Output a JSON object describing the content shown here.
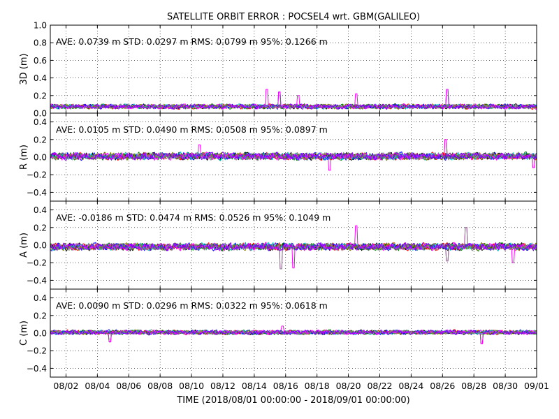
{
  "chart_data": {
    "type": "line",
    "title": "SATELLITE ORBIT ERROR : POCSEL4 wrt. GBM(GALILEO)",
    "xlabel": "TIME  (2018/08/01 00:00:00 - 2018/09/01 00:00:00)",
    "x_range": [
      "2018/08/01 00:00:00",
      "2018/09/01 00:00:00"
    ],
    "x_tick_labels": [
      "08/02",
      "08/04",
      "08/06",
      "08/08",
      "08/10",
      "08/12",
      "08/14",
      "08/16",
      "08/18",
      "08/20",
      "08/22",
      "08/24",
      "08/26",
      "08/28",
      "08/30",
      "09/01"
    ],
    "x_tick_days": [
      1,
      3,
      5,
      7,
      9,
      11,
      13,
      15,
      17,
      19,
      21,
      23,
      25,
      27,
      29,
      31
    ],
    "grid": true,
    "series_colors": [
      "#000000",
      "#ff0000",
      "#008000",
      "#0000ff",
      "#00bfbf",
      "#808000",
      "#ff00ff",
      "#808080",
      "#8000ff"
    ],
    "panels": [
      {
        "id": "3d",
        "ylabel": "3D (m)",
        "ylim": [
          0.0,
          1.0
        ],
        "yticks": [
          0.0,
          0.2,
          0.4,
          0.6,
          0.8,
          1.0
        ],
        "ytick_labels": [
          "0.0",
          "0.2",
          "0.4",
          "0.6",
          "0.8",
          "1.0"
        ],
        "stats": "AVE: 0.0739 m STD: 0.0297 m RMS: 0.0799 m 95%: 0.1266 m",
        "center": 0.075,
        "amplitude": 0.03,
        "clip_min": 0.0,
        "spikes": [
          [
            13.8,
            0.27
          ],
          [
            14.6,
            0.24
          ],
          [
            19.5,
            0.22
          ],
          [
            25.3,
            0.27
          ],
          [
            15.8,
            0.2
          ]
        ]
      },
      {
        "id": "r",
        "ylabel": "R (m)",
        "ylim": [
          -0.5,
          0.5
        ],
        "yticks": [
          -0.4,
          -0.2,
          0.0,
          0.2,
          0.4
        ],
        "ytick_labels": [
          "−0.4",
          "−0.2",
          "0.0",
          "0.2",
          "0.4"
        ],
        "stats": "AVE: 0.0105 m STD: 0.0490 m RMS: 0.0508 m 95%: 0.0897 m",
        "center": 0.01,
        "amplitude": 0.045,
        "spikes": [
          [
            25.2,
            0.2
          ],
          [
            17.8,
            -0.15
          ],
          [
            9.5,
            0.14
          ],
          [
            30.8,
            -0.12
          ]
        ]
      },
      {
        "id": "a",
        "ylabel": "A (m)",
        "ylim": [
          -0.5,
          0.5
        ],
        "yticks": [
          -0.4,
          -0.2,
          0.0,
          0.2,
          0.4
        ],
        "ytick_labels": [
          "−0.4",
          "−0.2",
          "0.0",
          "0.2",
          "0.4"
        ],
        "stats": "AVE: -0.0186 m STD: 0.0474 m RMS: 0.0526 m 95%: 0.1049 m",
        "center": -0.018,
        "amplitude": 0.045,
        "spikes": [
          [
            14.7,
            -0.27
          ],
          [
            15.5,
            -0.26
          ],
          [
            19.5,
            0.22
          ],
          [
            25.3,
            -0.18
          ],
          [
            26.5,
            0.2
          ],
          [
            29.5,
            -0.2
          ]
        ]
      },
      {
        "id": "c",
        "ylabel": "C (m)",
        "ylim": [
          -0.5,
          0.5
        ],
        "yticks": [
          -0.4,
          -0.2,
          0.0,
          0.2,
          0.4
        ],
        "ytick_labels": [
          "−0.4",
          "−0.2",
          "0.0",
          "0.2",
          "0.4"
        ],
        "stats": "AVE: 0.0090 m STD: 0.0296 m RMS: 0.0322 m 95%: 0.0618 m",
        "center": 0.009,
        "amplitude": 0.028,
        "spikes": [
          [
            27.5,
            -0.12
          ],
          [
            3.8,
            -0.1
          ],
          [
            14.8,
            0.08
          ]
        ]
      }
    ]
  }
}
